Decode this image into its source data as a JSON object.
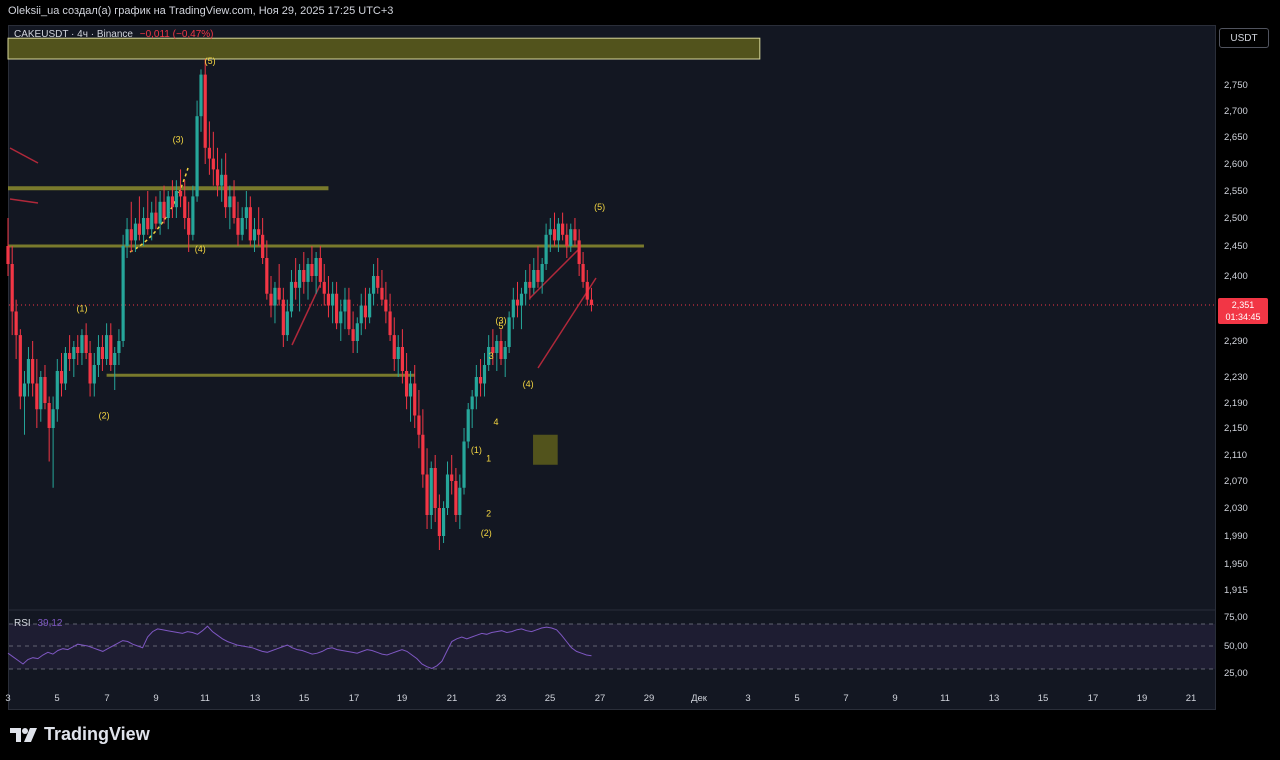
{
  "header": {
    "text": "Oleksii_ua создал(а) график на TradingView.com, Ноя 29, 2025 17:25 UTC+3"
  },
  "legend": {
    "symbol": "CAKEUSDT · 4ч · Binance",
    "change": "−0,011 (−0,47%)"
  },
  "unit_button": "USDT",
  "last_price": {
    "value": "2,351",
    "countdown": "01:34:45"
  },
  "rsi": {
    "label": "RSI",
    "value": "39,12"
  },
  "footer": {
    "brand": "TradingView"
  },
  "colors": {
    "up": "#26a69a",
    "down": "#f23645",
    "zone": "#5a5a1c",
    "label": "#f5d742",
    "rsi": "#7e57c2",
    "bg": "#131722"
  },
  "chart_data": {
    "type": "candlestick",
    "y_ticks": [
      "2,750",
      "2,700",
      "2,650",
      "2,600",
      "2,550",
      "2,500",
      "2,450",
      "2,400",
      "2,290",
      "2,230",
      "2,190",
      "2,150",
      "2,110",
      "2,070",
      "2,030",
      "1,990",
      "1,950",
      "1,915"
    ],
    "x_ticks": [
      "3",
      "5",
      "7",
      "9",
      "11",
      "13",
      "15",
      "17",
      "19",
      "21",
      "23",
      "25",
      "27",
      "29",
      "Дек",
      "3",
      "5",
      "7",
      "9",
      "11",
      "13",
      "15",
      "17",
      "19",
      "21"
    ],
    "rsi_ticks": [
      "75,00",
      "50,00",
      "25,00"
    ],
    "wave_labels": [
      {
        "text": "(5)",
        "day": 11.2,
        "price": 2.79
      },
      {
        "text": "(3)",
        "day": 9.9,
        "price": 2.64
      },
      {
        "text": "(4)",
        "day": 10.8,
        "price": 2.44
      },
      {
        "text": "(1)",
        "day": 6.0,
        "price": 2.34
      },
      {
        "text": "(2)",
        "day": 6.9,
        "price": 2.165
      },
      {
        "text": "(5)",
        "day": 27.0,
        "price": 2.515
      },
      {
        "text": "(3)",
        "day": 23.0,
        "price": 2.32
      },
      {
        "text": "5",
        "day": 23.0,
        "price": 2.31
      },
      {
        "text": "3",
        "day": 22.6,
        "price": 2.26
      },
      {
        "text": "(4)",
        "day": 24.1,
        "price": 2.215
      },
      {
        "text": "4",
        "day": 22.8,
        "price": 2.155
      },
      {
        "text": "1",
        "day": 22.5,
        "price": 2.1
      },
      {
        "text": "(1)",
        "day": 22.0,
        "price": 2.113
      },
      {
        "text": "2",
        "day": 22.5,
        "price": 2.018
      },
      {
        "text": "(2)",
        "day": 22.4,
        "price": 1.99
      }
    ],
    "candles": [
      [
        3.0,
        2.45,
        2.5,
        2.4,
        2.42
      ],
      [
        3.17,
        2.42,
        2.45,
        2.3,
        2.34
      ],
      [
        3.33,
        2.34,
        2.36,
        2.26,
        2.3
      ],
      [
        3.5,
        2.3,
        2.31,
        2.18,
        2.2
      ],
      [
        3.67,
        2.2,
        2.24,
        2.14,
        2.22
      ],
      [
        3.83,
        2.22,
        2.28,
        2.2,
        2.26
      ],
      [
        4.0,
        2.26,
        2.29,
        2.2,
        2.22
      ],
      [
        4.17,
        2.22,
        2.26,
        2.15,
        2.18
      ],
      [
        4.33,
        2.18,
        2.24,
        2.16,
        2.23
      ],
      [
        4.5,
        2.23,
        2.25,
        2.18,
        2.19
      ],
      [
        4.67,
        2.19,
        2.2,
        2.1,
        2.15
      ],
      [
        4.83,
        2.15,
        2.2,
        2.06,
        2.18
      ],
      [
        5.0,
        2.18,
        2.26,
        2.16,
        2.24
      ],
      [
        5.17,
        2.24,
        2.27,
        2.2,
        2.22
      ],
      [
        5.33,
        2.22,
        2.28,
        2.21,
        2.27
      ],
      [
        5.5,
        2.27,
        2.3,
        2.24,
        2.26
      ],
      [
        5.67,
        2.26,
        2.29,
        2.23,
        2.28
      ],
      [
        5.83,
        2.28,
        2.3,
        2.25,
        2.27
      ],
      [
        6.0,
        2.27,
        2.31,
        2.25,
        2.3
      ],
      [
        6.17,
        2.3,
        2.32,
        2.26,
        2.27
      ],
      [
        6.33,
        2.27,
        2.29,
        2.2,
        2.22
      ],
      [
        6.5,
        2.22,
        2.27,
        2.2,
        2.25
      ],
      [
        6.67,
        2.25,
        2.3,
        2.23,
        2.28
      ],
      [
        6.83,
        2.28,
        2.3,
        2.24,
        2.26
      ],
      [
        7.0,
        2.26,
        2.32,
        2.25,
        2.3
      ],
      [
        7.17,
        2.3,
        2.32,
        2.24,
        2.25
      ],
      [
        7.33,
        2.25,
        2.28,
        2.21,
        2.27
      ],
      [
        7.5,
        2.27,
        2.31,
        2.25,
        2.29
      ],
      [
        7.67,
        2.29,
        2.47,
        2.28,
        2.45
      ],
      [
        7.83,
        2.45,
        2.5,
        2.43,
        2.48
      ],
      [
        8.0,
        2.48,
        2.53,
        2.44,
        2.46
      ],
      [
        8.17,
        2.46,
        2.5,
        2.44,
        2.49
      ],
      [
        8.33,
        2.49,
        2.54,
        2.46,
        2.47
      ],
      [
        8.5,
        2.47,
        2.52,
        2.45,
        2.5
      ],
      [
        8.67,
        2.5,
        2.55,
        2.47,
        2.48
      ],
      [
        8.83,
        2.48,
        2.53,
        2.46,
        2.51
      ],
      [
        9.0,
        2.51,
        2.54,
        2.48,
        2.49
      ],
      [
        9.17,
        2.49,
        2.55,
        2.47,
        2.53
      ],
      [
        9.33,
        2.53,
        2.56,
        2.49,
        2.5
      ],
      [
        9.5,
        2.5,
        2.55,
        2.48,
        2.54
      ],
      [
        9.67,
        2.54,
        2.57,
        2.5,
        2.52
      ],
      [
        9.83,
        2.52,
        2.57,
        2.5,
        2.55
      ],
      [
        10.0,
        2.55,
        2.59,
        2.52,
        2.54
      ],
      [
        10.17,
        2.54,
        2.57,
        2.48,
        2.5
      ],
      [
        10.33,
        2.5,
        2.53,
        2.44,
        2.47
      ],
      [
        10.5,
        2.47,
        2.56,
        2.46,
        2.54
      ],
      [
        10.67,
        2.54,
        2.72,
        2.53,
        2.69
      ],
      [
        10.83,
        2.69,
        2.78,
        2.66,
        2.77
      ],
      [
        11.0,
        2.77,
        2.8,
        2.6,
        2.63
      ],
      [
        11.17,
        2.63,
        2.68,
        2.58,
        2.61
      ],
      [
        11.33,
        2.61,
        2.66,
        2.56,
        2.59
      ],
      [
        11.5,
        2.59,
        2.63,
        2.54,
        2.56
      ],
      [
        11.67,
        2.56,
        2.61,
        2.53,
        2.58
      ],
      [
        11.83,
        2.58,
        2.62,
        2.5,
        2.52
      ],
      [
        12.0,
        2.52,
        2.56,
        2.48,
        2.54
      ],
      [
        12.17,
        2.54,
        2.57,
        2.49,
        2.5
      ],
      [
        12.33,
        2.5,
        2.53,
        2.45,
        2.47
      ],
      [
        12.5,
        2.47,
        2.52,
        2.46,
        2.5
      ],
      [
        12.67,
        2.5,
        2.55,
        2.48,
        2.52
      ],
      [
        12.83,
        2.52,
        2.54,
        2.45,
        2.46
      ],
      [
        13.0,
        2.46,
        2.5,
        2.44,
        2.48
      ],
      [
        13.17,
        2.48,
        2.52,
        2.45,
        2.47
      ],
      [
        13.33,
        2.47,
        2.5,
        2.42,
        2.43
      ],
      [
        13.5,
        2.43,
        2.46,
        2.36,
        2.37
      ],
      [
        13.67,
        2.37,
        2.4,
        2.33,
        2.35
      ],
      [
        13.83,
        2.35,
        2.39,
        2.32,
        2.38
      ],
      [
        14.0,
        2.38,
        2.42,
        2.35,
        2.36
      ],
      [
        14.17,
        2.36,
        2.38,
        2.28,
        2.3
      ],
      [
        14.33,
        2.3,
        2.36,
        2.29,
        2.34
      ],
      [
        14.5,
        2.34,
        2.41,
        2.33,
        2.39
      ],
      [
        14.67,
        2.39,
        2.43,
        2.36,
        2.38
      ],
      [
        14.83,
        2.38,
        2.42,
        2.34,
        2.41
      ],
      [
        15.0,
        2.41,
        2.44,
        2.37,
        2.39
      ],
      [
        15.17,
        2.39,
        2.43,
        2.36,
        2.42
      ],
      [
        15.33,
        2.42,
        2.45,
        2.39,
        2.4
      ],
      [
        15.5,
        2.4,
        2.44,
        2.37,
        2.43
      ],
      [
        15.67,
        2.43,
        2.45,
        2.38,
        2.39
      ],
      [
        15.83,
        2.39,
        2.42,
        2.35,
        2.37
      ],
      [
        16.0,
        2.37,
        2.4,
        2.33,
        2.35
      ],
      [
        16.17,
        2.35,
        2.39,
        2.32,
        2.37
      ],
      [
        16.33,
        2.37,
        2.39,
        2.31,
        2.32
      ],
      [
        16.5,
        2.32,
        2.36,
        2.29,
        2.34
      ],
      [
        16.67,
        2.34,
        2.38,
        2.31,
        2.36
      ],
      [
        16.83,
        2.36,
        2.38,
        2.3,
        2.31
      ],
      [
        17.0,
        2.31,
        2.34,
        2.27,
        2.29
      ],
      [
        17.17,
        2.29,
        2.33,
        2.27,
        2.32
      ],
      [
        17.33,
        2.32,
        2.37,
        2.3,
        2.35
      ],
      [
        17.5,
        2.35,
        2.38,
        2.31,
        2.33
      ],
      [
        17.67,
        2.33,
        2.38,
        2.32,
        2.37
      ],
      [
        17.83,
        2.37,
        2.42,
        2.35,
        2.4
      ],
      [
        18.0,
        2.4,
        2.43,
        2.37,
        2.38
      ],
      [
        18.17,
        2.38,
        2.41,
        2.35,
        2.36
      ],
      [
        18.33,
        2.36,
        2.39,
        2.32,
        2.34
      ],
      [
        18.5,
        2.34,
        2.37,
        2.29,
        2.3
      ],
      [
        18.67,
        2.3,
        2.33,
        2.24,
        2.26
      ],
      [
        18.83,
        2.26,
        2.3,
        2.23,
        2.28
      ],
      [
        19.0,
        2.28,
        2.31,
        2.22,
        2.24
      ],
      [
        19.17,
        2.24,
        2.27,
        2.18,
        2.2
      ],
      [
        19.33,
        2.2,
        2.24,
        2.16,
        2.22
      ],
      [
        19.5,
        2.22,
        2.25,
        2.15,
        2.17
      ],
      [
        19.67,
        2.17,
        2.21,
        2.12,
        2.14
      ],
      [
        19.83,
        2.14,
        2.18,
        2.06,
        2.08
      ],
      [
        20.0,
        2.08,
        2.12,
        2.0,
        2.02
      ],
      [
        20.17,
        2.02,
        2.1,
        2.0,
        2.09
      ],
      [
        20.33,
        2.09,
        2.11,
        2.01,
        2.03
      ],
      [
        20.5,
        2.03,
        2.05,
        1.97,
        1.99
      ],
      [
        20.67,
        1.99,
        2.04,
        1.98,
        2.03
      ],
      [
        20.83,
        2.03,
        2.1,
        2.02,
        2.08
      ],
      [
        21.0,
        2.08,
        2.11,
        2.05,
        2.07
      ],
      [
        21.17,
        2.07,
        2.09,
        2.01,
        2.02
      ],
      [
        21.33,
        2.02,
        2.08,
        2.0,
        2.06
      ],
      [
        21.5,
        2.06,
        2.15,
        2.05,
        2.13
      ],
      [
        21.67,
        2.13,
        2.19,
        2.12,
        2.18
      ],
      [
        21.83,
        2.18,
        2.21,
        2.15,
        2.2
      ],
      [
        22.0,
        2.2,
        2.25,
        2.18,
        2.23
      ],
      [
        22.17,
        2.23,
        2.26,
        2.2,
        2.22
      ],
      [
        22.33,
        2.22,
        2.27,
        2.2,
        2.25
      ],
      [
        22.5,
        2.25,
        2.3,
        2.24,
        2.28
      ],
      [
        22.67,
        2.28,
        2.31,
        2.25,
        2.27
      ],
      [
        22.83,
        2.27,
        2.3,
        2.24,
        2.29
      ],
      [
        23.0,
        2.29,
        2.31,
        2.25,
        2.26
      ],
      [
        23.17,
        2.26,
        2.29,
        2.23,
        2.28
      ],
      [
        23.33,
        2.28,
        2.34,
        2.27,
        2.33
      ],
      [
        23.5,
        2.33,
        2.38,
        2.31,
        2.36
      ],
      [
        23.67,
        2.36,
        2.39,
        2.33,
        2.35
      ],
      [
        23.83,
        2.35,
        2.38,
        2.31,
        2.37
      ],
      [
        24.0,
        2.37,
        2.41,
        2.35,
        2.39
      ],
      [
        24.17,
        2.39,
        2.42,
        2.36,
        2.38
      ],
      [
        24.33,
        2.38,
        2.43,
        2.37,
        2.41
      ],
      [
        24.5,
        2.41,
        2.45,
        2.38,
        2.39
      ],
      [
        24.67,
        2.39,
        2.43,
        2.37,
        2.42
      ],
      [
        24.83,
        2.42,
        2.49,
        2.41,
        2.47
      ],
      [
        25.0,
        2.47,
        2.5,
        2.44,
        2.48
      ],
      [
        25.17,
        2.48,
        2.51,
        2.45,
        2.46
      ],
      [
        25.33,
        2.46,
        2.5,
        2.44,
        2.49
      ],
      [
        25.5,
        2.49,
        2.51,
        2.46,
        2.47
      ],
      [
        25.67,
        2.47,
        2.49,
        2.43,
        2.45
      ],
      [
        25.83,
        2.45,
        2.49,
        2.44,
        2.48
      ],
      [
        26.0,
        2.48,
        2.5,
        2.45,
        2.46
      ],
      [
        26.17,
        2.46,
        2.48,
        2.4,
        2.42
      ],
      [
        26.33,
        2.42,
        2.44,
        2.38,
        2.39
      ],
      [
        26.5,
        2.39,
        2.41,
        2.35,
        2.36
      ],
      [
        26.67,
        2.36,
        2.38,
        2.34,
        2.351
      ]
    ],
    "zones": [
      {
        "label": "top",
        "day0": 3.0,
        "day1": 33.5,
        "p0": 2.8,
        "p1": 2.84
      },
      {
        "label": "box",
        "day0": 24.3,
        "day1": 25.3,
        "p0": 2.095,
        "p1": 2.14
      }
    ],
    "levels": [
      {
        "day0": 3.0,
        "day1": 16.0,
        "price": 2.555
      },
      {
        "day0": 3.0,
        "day1": 28.8,
        "price": 2.45
      },
      {
        "day0": 7.0,
        "day1": 19.5,
        "price": 2.233
      }
    ],
    "rsi_values": [
      42,
      38,
      34,
      30,
      35,
      37,
      36,
      40,
      43,
      41,
      45,
      47,
      46,
      49,
      52,
      51,
      50,
      48,
      46,
      44,
      47,
      50,
      53,
      56,
      55,
      52,
      50,
      48,
      60,
      66,
      69,
      68,
      67,
      66,
      65,
      64,
      66,
      65,
      63,
      67,
      72,
      66,
      62,
      58,
      55,
      53,
      51,
      50,
      49,
      48,
      46,
      44,
      43,
      45,
      47,
      49,
      51,
      48,
      46,
      45,
      43,
      41,
      42,
      44,
      47,
      48,
      46,
      45,
      44,
      43,
      42,
      44,
      46,
      45,
      43,
      41,
      40,
      42,
      44,
      46,
      44,
      40,
      36,
      30,
      27,
      25,
      28,
      33,
      44,
      55,
      58,
      60,
      58,
      60,
      62,
      64,
      63,
      65,
      66,
      67,
      65,
      66,
      68,
      69,
      67,
      66,
      68,
      70,
      71,
      70,
      68,
      62,
      55,
      48,
      44,
      42,
      40,
      39.12
    ]
  }
}
